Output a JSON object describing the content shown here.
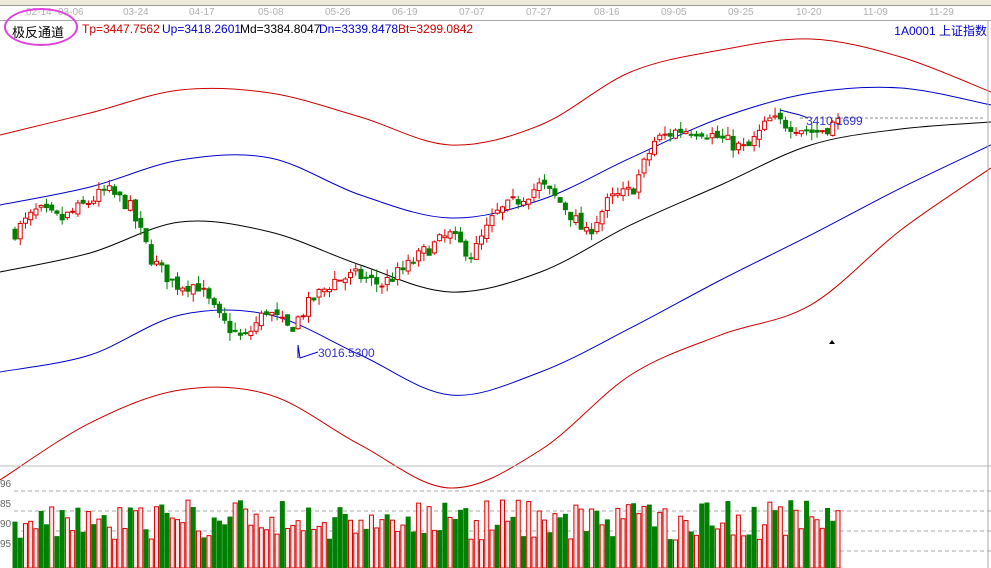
{
  "toolbar": {},
  "date_axis": [
    "02-14",
    "03-06",
    "03-24",
    "04-17",
    "05-08",
    "05-26",
    "06-19",
    "07-07",
    "07-27",
    "08-16",
    "09-05",
    "09-25",
    "10-20",
    "11-09",
    "11-29"
  ],
  "header": {
    "indicator_name": "极反通道",
    "tp": "Tp=3447.7562",
    "up": "Up=3418.2601",
    "md": "Md=3384.8047",
    "dn": "Dn=3339.8478",
    "bt": "Bt=3299.0842",
    "symbol": "1A0001  上证指数"
  },
  "colors": {
    "up_candle": "#dd0000",
    "down_candle": "#008000",
    "tp": "#cc0000",
    "up": "#0000cc",
    "md": "#000000",
    "dn": "#0000cc",
    "bt": "#cc0000"
  },
  "annotations": {
    "low_label": "3016.5300",
    "high_label": "3410.1699"
  },
  "volume_axis": [
    "96",
    "85",
    "90",
    "95"
  ],
  "chart_data": {
    "type": "candlestick",
    "close_trend": [
      3221,
      3257,
      3241,
      3265,
      3290,
      3265,
      3174,
      3133,
      3133,
      3074,
      3041,
      3091,
      3058,
      3108,
      3141,
      3149,
      3133,
      3158,
      3191,
      3216,
      3182,
      3249,
      3274,
      3299,
      3265,
      3216,
      3274,
      3290,
      3373,
      3390,
      3390,
      3373,
      3357,
      3407,
      3398,
      3386,
      3403
    ],
    "low": 3016.53,
    "high": 3410.1699,
    "bands": {
      "Tp": [
        3381.8,
        3418.3,
        3456.5,
        3451.5,
        3411.7,
        3365.2,
        3398.4,
        3486.4,
        3522.9,
        3541.2,
        3511.3,
        3453.2
      ],
      "Up": [
        3265.5,
        3295.4,
        3340.2,
        3343.6,
        3282.1,
        3243.9,
        3273.8,
        3343.6,
        3410.0,
        3451.5,
        3459.8,
        3431.6
      ],
      "Md": [
        3154.2,
        3185.8,
        3237.3,
        3220.6,
        3165.8,
        3121.0,
        3154.2,
        3232.3,
        3298.7,
        3365.2,
        3391.7,
        3403.4
      ],
      "Dn": [
        2988.1,
        3016.3,
        3082.8,
        3082.8,
        3016.3,
        2949.9,
        2988.1,
        3061.2,
        3140.9,
        3215.7,
        3293.7,
        3365.2
      ],
      "Bt": [
        2808.7,
        2903.4,
        2958.2,
        2949.9,
        2866.9,
        2795.4,
        2858.5,
        2983.1,
        3049.6,
        3099.4,
        3224.0,
        3327.0
      ]
    }
  }
}
